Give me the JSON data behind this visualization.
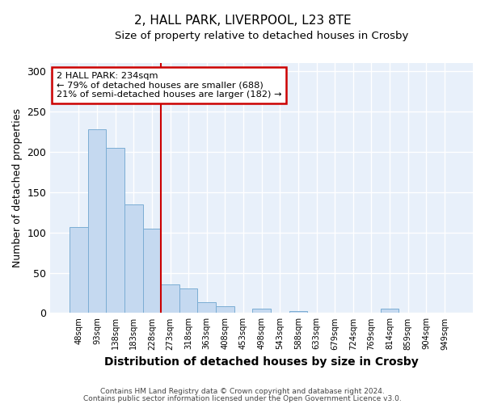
{
  "title1": "2, HALL PARK, LIVERPOOL, L23 8TE",
  "title2": "Size of property relative to detached houses in Crosby",
  "xlabel": "Distribution of detached houses by size in Crosby",
  "ylabel": "Number of detached properties",
  "footnote1": "Contains HM Land Registry data © Crown copyright and database right 2024.",
  "footnote2": "Contains public sector information licensed under the Open Government Licence v3.0.",
  "annotation_line1": "2 HALL PARK: 234sqm",
  "annotation_line2": "← 79% of detached houses are smaller (688)",
  "annotation_line3": "21% of semi-detached houses are larger (182) →",
  "bar_labels": [
    "48sqm",
    "93sqm",
    "138sqm",
    "183sqm",
    "228sqm",
    "273sqm",
    "318sqm",
    "363sqm",
    "408sqm",
    "453sqm",
    "498sqm",
    "543sqm",
    "588sqm",
    "633sqm",
    "679sqm",
    "724sqm",
    "769sqm",
    "814sqm",
    "859sqm",
    "904sqm",
    "949sqm"
  ],
  "bar_values": [
    107,
    228,
    205,
    135,
    105,
    36,
    30,
    13,
    8,
    0,
    5,
    0,
    2,
    0,
    0,
    0,
    0,
    5,
    0,
    0,
    0
  ],
  "bar_color": "#c5d9f0",
  "bar_edge_color": "#7badd4",
  "marker_index": 4,
  "marker_color": "#cc0000",
  "ylim": [
    0,
    310
  ],
  "yticks": [
    0,
    50,
    100,
    150,
    200,
    250,
    300
  ],
  "annotation_box_color": "white",
  "annotation_box_edge": "#cc0000",
  "bg_color": "#ffffff",
  "plot_bg_color": "#e8f0fa",
  "grid_color": "#ffffff"
}
